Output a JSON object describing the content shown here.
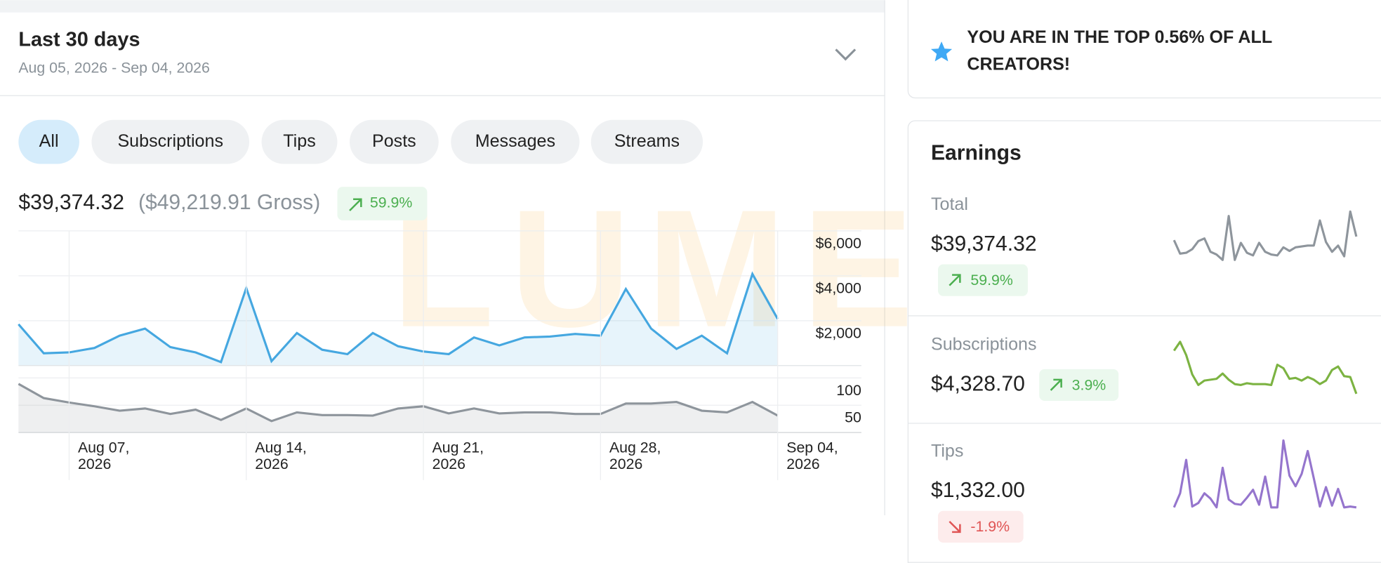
{
  "header": {
    "title": "Last 30 days",
    "date_range": "Aug 05, 2026 - Sep 04, 2026"
  },
  "filters": [
    "All",
    "Subscriptions",
    "Tips",
    "Posts",
    "Messages",
    "Streams"
  ],
  "summary": {
    "net": "$39,374.32",
    "gross": "($49,219.91 Gross)",
    "change": "59.9%"
  },
  "watermark": "LUMEN",
  "chart_data": [
    {
      "type": "area",
      "color": "#45a7e0",
      "x": [
        "2026-08-05",
        "2026-08-06",
        "2026-08-07",
        "2026-08-08",
        "2026-08-09",
        "2026-08-10",
        "2026-08-11",
        "2026-08-12",
        "2026-08-13",
        "2026-08-14",
        "2026-08-15",
        "2026-08-16",
        "2026-08-17",
        "2026-08-18",
        "2026-08-19",
        "2026-08-20",
        "2026-08-21",
        "2026-08-22",
        "2026-08-23",
        "2026-08-24",
        "2026-08-25",
        "2026-08-26",
        "2026-08-27",
        "2026-08-28",
        "2026-08-29",
        "2026-08-30",
        "2026-08-31",
        "2026-09-01",
        "2026-09-02",
        "2026-09-03",
        "2026-09-04"
      ],
      "values": [
        1842,
        549,
        588,
        784,
        1333,
        1646,
        823,
        588,
        157,
        3450,
        196,
        1450,
        706,
        510,
        1450,
        862,
        627,
        510,
        1254,
        902,
        1254,
        1294,
        1411,
        1333,
        3410,
        1646,
        745,
        1333,
        549,
        4077,
        2078
      ],
      "ylim": [
        0,
        6000
      ],
      "yticks": [
        {
          "value": 2000,
          "label": "$2,000"
        },
        {
          "value": 4000,
          "label": "$4,000"
        },
        {
          "value": 6000,
          "label": "$6,000"
        }
      ],
      "xticks": [
        {
          "value": "2026-08-07",
          "label": [
            "Aug 07,",
            "2026"
          ]
        },
        {
          "value": "2026-08-14",
          "label": [
            "Aug 14,",
            "2026"
          ]
        },
        {
          "value": "2026-08-21",
          "label": [
            "Aug 21,",
            "2026"
          ]
        },
        {
          "value": "2026-08-28",
          "label": [
            "Aug 28,",
            "2026"
          ]
        },
        {
          "value": "2026-09-04",
          "label": [
            "Sep 04,",
            "2026"
          ]
        }
      ],
      "grid": true
    },
    {
      "type": "area",
      "color": "#8e959c",
      "values": [
        89,
        63,
        55,
        48,
        40,
        44,
        34,
        42,
        23,
        44,
        21,
        37,
        32,
        32,
        31,
        44,
        48,
        35,
        44,
        35,
        37,
        37,
        34,
        34,
        53,
        53,
        56,
        40,
        37,
        56,
        31
      ],
      "ylim": [
        0,
        100
      ],
      "yticks": [
        50,
        100
      ],
      "grid": true
    }
  ],
  "top_banner": {
    "lines": [
      "YOU ARE IN THE TOP 0.56% OF ALL",
      "CREATORS!"
    ]
  },
  "earnings": {
    "title": "Earnings",
    "items": [
      {
        "label": "Total",
        "amount": "$39,374.32",
        "change": "59.9%",
        "trend": "up",
        "color": "#8e959c",
        "values": [
          28,
          13,
          14,
          18,
          27,
          30,
          15,
          12,
          6,
          55,
          6,
          25,
          14,
          11,
          25,
          15,
          12,
          11,
          20,
          16,
          20,
          21,
          22,
          22,
          50,
          26,
          15,
          22,
          10,
          60,
          32
        ]
      },
      {
        "label": "Subscriptions",
        "amount": "$4,328.70",
        "change": "3.9%",
        "trend": "up",
        "color": "#7cb342",
        "values": [
          49,
          59,
          44,
          22,
          10,
          15,
          16,
          17,
          23,
          16,
          11,
          10,
          12,
          11,
          11,
          11,
          10,
          33,
          29,
          17,
          18,
          15,
          19,
          16,
          11,
          15,
          27,
          31,
          20,
          19,
          0
        ]
      },
      {
        "label": "Tips",
        "amount": "$1,332.00",
        "change": "-1.9%",
        "trend": "down",
        "color": "#9575cd",
        "values": [
          0,
          16,
          54,
          1,
          5,
          16,
          10,
          0,
          45,
          9,
          4,
          3,
          11,
          20,
          3,
          35,
          0,
          0,
          76,
          36,
          24,
          38,
          64,
          33,
          1,
          23,
          2,
          21,
          0,
          1,
          0
        ]
      }
    ]
  }
}
